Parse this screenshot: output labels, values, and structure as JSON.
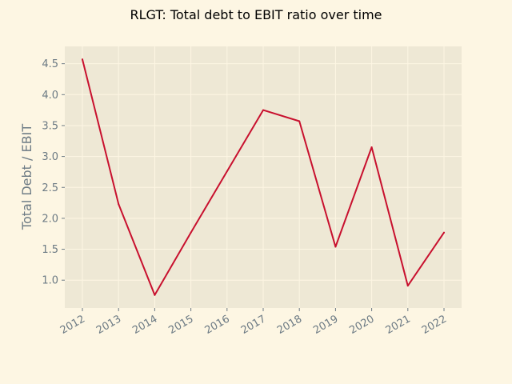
{
  "chart_data": {
    "type": "line",
    "title": "RLGT: Total debt to EBIT ratio over time",
    "xlabel": "",
    "ylabel": "Total Debt / EBIT",
    "categories": [
      "2012",
      "2013",
      "2014",
      "2015",
      "2016",
      "2017",
      "2018",
      "2019",
      "2020",
      "2021",
      "2022"
    ],
    "series": [
      {
        "values": [
          4.57,
          2.23,
          0.76,
          1.77,
          null,
          3.75,
          3.57,
          1.54,
          3.15,
          0.91,
          1.77
        ]
      }
    ],
    "yticks": [
      "1.0",
      "1.5",
      "2.0",
      "2.5",
      "3.0",
      "3.5",
      "4.0",
      "4.5"
    ],
    "ylim": [
      0.55,
      4.78
    ],
    "grid": true,
    "legend": "none",
    "colors": {
      "background": "#fdf6e3",
      "plot_background": "#eee8d5",
      "line": "#c8102e",
      "grid": "#fdf6e3",
      "text": "#6c7a84"
    }
  }
}
